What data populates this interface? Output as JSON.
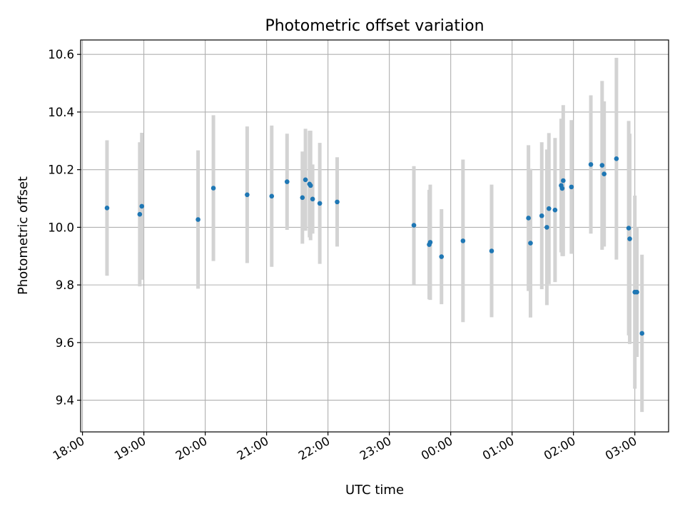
{
  "chart_data": {
    "type": "scatter",
    "title": "Photometric offset variation",
    "xlabel": "UTC time",
    "ylabel": "Photometric offset",
    "x_axis_type": "time",
    "x_tick_labels": [
      "18:00",
      "19:00",
      "20:00",
      "21:00",
      "22:00",
      "23:00",
      "00:00",
      "01:00",
      "02:00",
      "03:00"
    ],
    "x_tick_hours": [
      18,
      19,
      20,
      21,
      22,
      23,
      24,
      25,
      26,
      27
    ],
    "xlim_hours": [
      17.97,
      27.55
    ],
    "y_ticks": [
      9.4,
      9.6,
      9.8,
      10.0,
      10.2,
      10.4,
      10.6
    ],
    "y_tick_labels": [
      "9.4",
      "9.6",
      "9.8",
      "10.0",
      "10.2",
      "10.4",
      "10.6"
    ],
    "ylim": [
      9.29,
      10.65
    ],
    "grid": true,
    "marker_color": "#1f77b4",
    "errorbar_color": "#d3d3d3",
    "series": [
      {
        "points": [
          {
            "time": "18:24",
            "y": 10.067,
            "err": 0.235
          },
          {
            "time": "18:56",
            "y": 10.045,
            "err": 0.25
          },
          {
            "time": "18:58",
            "y": 10.073,
            "err": 0.255
          },
          {
            "time": "19:53",
            "y": 10.027,
            "err": 0.24
          },
          {
            "time": "20:08",
            "y": 10.136,
            "err": 0.253
          },
          {
            "time": "20:41",
            "y": 10.113,
            "err": 0.237
          },
          {
            "time": "21:05",
            "y": 10.108,
            "err": 0.245
          },
          {
            "time": "21:20",
            "y": 10.158,
            "err": 0.167
          },
          {
            "time": "21:35",
            "y": 10.103,
            "err": 0.16
          },
          {
            "time": "21:38",
            "y": 10.165,
            "err": 0.177
          },
          {
            "time": "21:42",
            "y": 10.15,
            "err": 0.185
          },
          {
            "time": "21:43",
            "y": 10.145,
            "err": 0.19
          },
          {
            "time": "21:45",
            "y": 10.098,
            "err": 0.12
          },
          {
            "time": "21:52",
            "y": 10.083,
            "err": 0.21
          },
          {
            "time": "22:09",
            "y": 10.088,
            "err": 0.155
          },
          {
            "time": "23:24",
            "y": 10.007,
            "err": 0.205
          },
          {
            "time": "23:39",
            "y": 9.94,
            "err": 0.19
          },
          {
            "time": "23:40",
            "y": 9.948,
            "err": 0.2
          },
          {
            "time": "23:51",
            "y": 9.898,
            "err": 0.165
          },
          {
            "time": "00:12",
            "y": 9.953,
            "err": 0.282
          },
          {
            "time": "00:40",
            "y": 9.918,
            "err": 0.23
          },
          {
            "time": "01:16",
            "y": 10.032,
            "err": 0.253
          },
          {
            "time": "01:18",
            "y": 9.945,
            "err": 0.258
          },
          {
            "time": "01:29",
            "y": 10.04,
            "err": 0.255
          },
          {
            "time": "01:34",
            "y": 10.0,
            "err": 0.27
          },
          {
            "time": "01:36",
            "y": 10.065,
            "err": 0.262
          },
          {
            "time": "01:42",
            "y": 10.06,
            "err": 0.25
          },
          {
            "time": "01:48",
            "y": 10.145,
            "err": 0.232
          },
          {
            "time": "01:49",
            "y": 10.135,
            "err": 0.235
          },
          {
            "time": "01:50",
            "y": 10.162,
            "err": 0.262
          },
          {
            "time": "01:58",
            "y": 10.14,
            "err": 0.232
          },
          {
            "time": "02:17",
            "y": 10.218,
            "err": 0.24
          },
          {
            "time": "02:28",
            "y": 10.215,
            "err": 0.293
          },
          {
            "time": "02:30",
            "y": 10.185,
            "err": 0.252
          },
          {
            "time": "02:42",
            "y": 10.238,
            "err": 0.35
          },
          {
            "time": "02:54",
            "y": 9.997,
            "err": 0.372
          },
          {
            "time": "02:55",
            "y": 9.96,
            "err": 0.365
          },
          {
            "time": "03:00",
            "y": 9.775,
            "err": 0.335
          },
          {
            "time": "03:02",
            "y": 9.775,
            "err": 0.225
          },
          {
            "time": "03:07",
            "y": 9.632,
            "err": 0.273
          }
        ]
      }
    ]
  }
}
